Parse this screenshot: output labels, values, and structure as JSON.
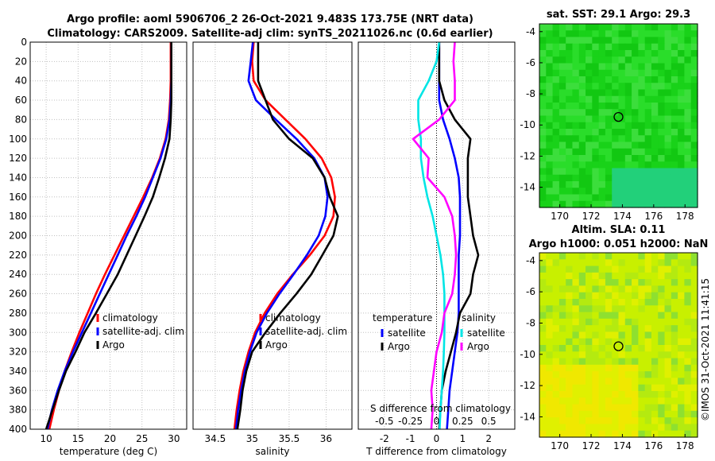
{
  "header": {
    "title_line1": "Argo profile: aoml 5906706_2 26-Oct-2021 9.483S 173.75E (NRT data)",
    "title_line2": "Climatology: CARS2009. Satellite-adj clim: synTS_20211026.nc (0.6d earlier)"
  },
  "colors": {
    "climatology": "#ff0000",
    "satellite": "#0000ff",
    "argo": "#000000",
    "salinity_satellite": "#00e5e5",
    "salinity_argo": "#ff00ff",
    "grid": "#c0c0c0"
  },
  "depth_axis": {
    "range": [
      0,
      400
    ],
    "ticks": [
      0,
      20,
      40,
      60,
      80,
      100,
      120,
      140,
      160,
      180,
      200,
      220,
      240,
      260,
      280,
      300,
      320,
      340,
      360,
      380,
      400
    ],
    "tick_labels": [
      "0",
      "20",
      "40",
      "60",
      "80",
      "100",
      "120",
      "140",
      "160",
      "180",
      "200",
      "220",
      "240",
      "260",
      "280",
      "300",
      "320",
      "340",
      "360",
      "380",
      "400"
    ]
  },
  "chart_data": [
    {
      "type": "line",
      "name": "temperature-profile",
      "xlabel": "temperature (deg C)",
      "xlim": [
        7.5,
        32
      ],
      "xticks": [
        10,
        15,
        20,
        25,
        30
      ],
      "xtick_labels": [
        "10",
        "15",
        "20",
        "25",
        "30"
      ],
      "depth": [
        0,
        20,
        40,
        60,
        80,
        100,
        120,
        140,
        160,
        180,
        200,
        220,
        240,
        260,
        280,
        300,
        320,
        340,
        360,
        380,
        400
      ],
      "series": [
        {
          "name": "climatology",
          "color": "#ff0000",
          "values": [
            29.5,
            29.5,
            29.5,
            29.4,
            29.2,
            28.7,
            27.8,
            26.6,
            25.2,
            23.7,
            22.2,
            20.7,
            19.2,
            17.8,
            16.5,
            15.2,
            14.0,
            12.9,
            12.0,
            11.2,
            10.5
          ]
        },
        {
          "name": "satellite-adj. clim",
          "color": "#0000ff",
          "values": [
            29.6,
            29.6,
            29.6,
            29.5,
            29.3,
            28.8,
            27.9,
            26.7,
            25.5,
            24.1,
            22.6,
            21.2,
            19.8,
            18.4,
            17.0,
            15.6,
            14.2,
            12.9,
            11.8,
            10.9,
            10.2
          ]
        },
        {
          "name": "Argo",
          "color": "#000000",
          "values": [
            29.6,
            29.6,
            29.6,
            29.6,
            29.5,
            29.3,
            28.6,
            27.7,
            26.7,
            25.4,
            24.0,
            22.6,
            21.2,
            19.5,
            17.8,
            16.0,
            14.6,
            13.1,
            12.0,
            11.0,
            10.0
          ]
        }
      ],
      "legend": [
        "climatology",
        "satellite-adj. clim",
        "Argo"
      ],
      "legend_location": "lower-right"
    },
    {
      "type": "line",
      "name": "salinity-profile",
      "xlabel": "salinity",
      "xlim": [
        34.2,
        36.35
      ],
      "xticks": [
        34.5,
        35,
        35.5,
        36
      ],
      "xtick_labels": [
        "34.5",
        "35",
        "35.5",
        "36"
      ],
      "depth": [
        0,
        20,
        40,
        60,
        80,
        100,
        120,
        140,
        160,
        180,
        200,
        220,
        240,
        260,
        280,
        300,
        320,
        340,
        360,
        380,
        400
      ],
      "series": [
        {
          "name": "climatology",
          "color": "#ff0000",
          "values": [
            35.02,
            35.0,
            35.02,
            35.18,
            35.45,
            35.72,
            35.94,
            36.07,
            36.12,
            36.1,
            35.98,
            35.78,
            35.55,
            35.34,
            35.17,
            35.04,
            34.95,
            34.88,
            34.83,
            34.79,
            34.76
          ]
        },
        {
          "name": "satellite-adj. clim",
          "color": "#0000ff",
          "values": [
            35.01,
            34.98,
            34.95,
            35.05,
            35.32,
            35.6,
            35.84,
            35.98,
            36.02,
            35.99,
            35.9,
            35.74,
            35.56,
            35.37,
            35.2,
            35.06,
            34.97,
            34.9,
            34.85,
            34.81,
            34.78
          ]
        },
        {
          "name": "Argo",
          "color": "#000000",
          "values": [
            35.08,
            35.08,
            35.08,
            35.18,
            35.28,
            35.5,
            35.82,
            35.98,
            36.05,
            36.16,
            36.1,
            35.95,
            35.8,
            35.6,
            35.38,
            35.18,
            35.0,
            34.92,
            34.87,
            34.84,
            34.8
          ]
        }
      ],
      "legend": [
        "climatology",
        "satellite-adj. clim",
        "Argo"
      ],
      "legend_location": "lower-right"
    },
    {
      "type": "line",
      "name": "difference-profile",
      "xlabel": "T difference from climatology",
      "xlabel_top": "S difference from climatology",
      "xlim": [
        -3,
        3
      ],
      "xticks": [
        -2,
        -1,
        0,
        1,
        2
      ],
      "xtick_labels": [
        "-2",
        "-1",
        "0",
        "1",
        "2"
      ],
      "s_xticks": [
        -0.5,
        -0.25,
        0,
        0.25,
        0.5
      ],
      "s_xtick_labels": [
        "-0.5",
        "-0.25",
        "0",
        "0.25",
        "0.5"
      ],
      "s_scale_note": "salinity difference scaled x4 onto temperature axis",
      "depth": [
        0,
        20,
        40,
        60,
        80,
        100,
        120,
        140,
        160,
        180,
        200,
        220,
        240,
        260,
        280,
        300,
        320,
        340,
        360,
        380,
        400
      ],
      "series": [
        {
          "name": "temperature satellite",
          "color": "#0000ff",
          "values": [
            0.1,
            0.1,
            0.1,
            0.1,
            0.25,
            0.5,
            0.7,
            0.85,
            0.9,
            0.9,
            0.9,
            0.85,
            0.85,
            0.85,
            0.85,
            0.8,
            0.7,
            0.6,
            0.5,
            0.45,
            0.4
          ]
        },
        {
          "name": "temperature Argo",
          "color": "#000000",
          "values": [
            0.1,
            0.1,
            0.1,
            0.3,
            0.7,
            1.3,
            1.2,
            1.2,
            1.2,
            1.3,
            1.4,
            1.6,
            1.4,
            1.3,
            0.9,
            0.75,
            0.55,
            0.35,
            0.2,
            0.15,
            0.1
          ]
        },
        {
          "name": "salinity satellite",
          "color": "#00e5e5",
          "values": [
            0.1,
            0.0,
            -0.3,
            -0.7,
            -0.7,
            -0.6,
            -0.6,
            -0.5,
            -0.35,
            -0.15,
            0.0,
            0.15,
            0.25,
            0.3,
            0.3,
            0.3,
            0.28,
            0.25,
            0.2,
            0.15,
            0.12
          ]
        },
        {
          "name": "salinity Argo",
          "color": "#ff00ff",
          "values": [
            0.7,
            0.65,
            0.7,
            0.7,
            0.1,
            -0.9,
            -0.3,
            -0.35,
            0.3,
            0.6,
            0.7,
            0.75,
            0.7,
            0.6,
            0.3,
            0.2,
            0.0,
            -0.1,
            -0.2,
            -0.15,
            -0.2
          ]
        }
      ],
      "legend_groups": [
        {
          "title": "temperature",
          "entries": [
            "satellite",
            "Argo"
          ]
        },
        {
          "title": "salinity",
          "entries": [
            "satellite",
            "Argo"
          ]
        }
      ],
      "legend_location": "lower-center"
    }
  ],
  "maps": [
    {
      "title": "sat. SST: 29.1 Argo: 29.3",
      "title_prefix": "",
      "xticks": [
        "170",
        "172",
        "174",
        "176",
        "178"
      ],
      "yticks": [
        "-4",
        "-6",
        "-8",
        "-10",
        "-12",
        "-14"
      ],
      "xlim": [
        168.7,
        178.8
      ],
      "ylim": [
        -15.3,
        -3.5
      ],
      "marker": {
        "lon": 173.75,
        "lat": -9.483
      },
      "colors": [
        "#19d219",
        "#2add2a",
        "#12c812",
        "#3cde3c",
        "#22d07a"
      ]
    },
    {
      "title_prefix": "Altim. SLA: 0.11",
      "title": "Argo h1000: 0.051 h2000: NaN",
      "xticks": [
        "170",
        "172",
        "174",
        "176",
        "178"
      ],
      "yticks": [
        "-4",
        "-6",
        "-8",
        "-10",
        "-12",
        "-14"
      ],
      "xlim": [
        168.7,
        178.8
      ],
      "ylim": [
        -15.3,
        -3.5
      ],
      "marker": {
        "lon": 173.75,
        "lat": -9.483
      },
      "colors": [
        "#c8f000",
        "#b4ea10",
        "#e0f000",
        "#f0e800",
        "#8ee030"
      ]
    }
  ],
  "footer": {
    "stamp": "©IMOS 31-Oct-2021 11:41:15"
  }
}
